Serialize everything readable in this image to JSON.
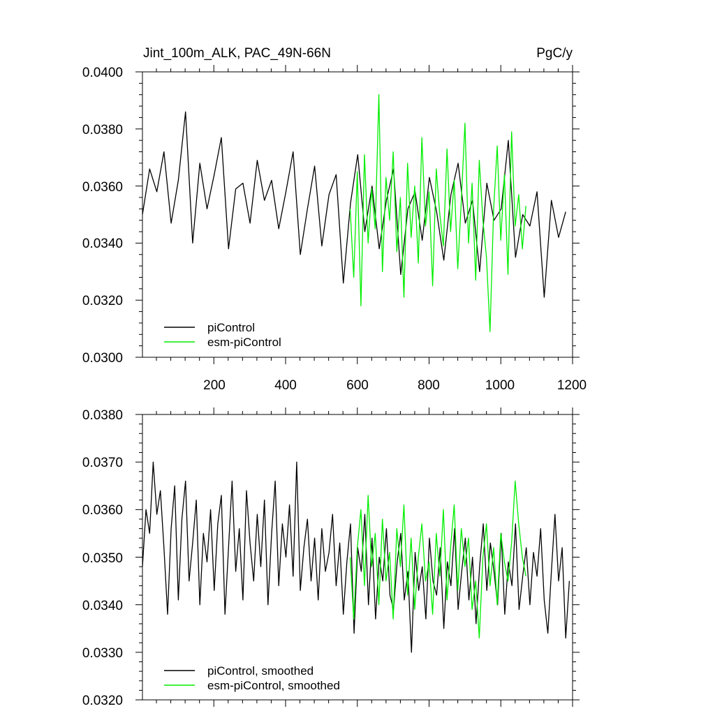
{
  "chart_data": [
    {
      "type": "line",
      "title": "Jint_100m_ALK, PAC_49N-66N",
      "units": "PgC/y",
      "xlabel": "",
      "ylabel": "",
      "xlim": [
        1,
        1200
      ],
      "ylim": [
        0.03,
        0.04
      ],
      "x_ticks": [
        200,
        400,
        600,
        800,
        1000,
        1200
      ],
      "x_tick_labels": [
        "200",
        "400",
        "600",
        "800",
        "1000",
        "1200"
      ],
      "y_ticks": [
        0.03,
        0.032,
        0.034,
        0.036,
        0.038,
        0.04
      ],
      "y_tick_labels": [
        "0.0300",
        "0.0320",
        "0.0340",
        "0.0360",
        "0.0380",
        "0.0400"
      ],
      "legend_position": "bottom-left",
      "grid": false,
      "series": [
        {
          "name": "piControl",
          "color": "#000000",
          "x_start": 1,
          "step": 20,
          "values": [
            0.035,
            0.0366,
            0.0358,
            0.0372,
            0.0347,
            0.0362,
            0.0386,
            0.034,
            0.0368,
            0.0352,
            0.0364,
            0.0377,
            0.0338,
            0.0359,
            0.0361,
            0.0347,
            0.0369,
            0.0355,
            0.0362,
            0.0345,
            0.0358,
            0.0372,
            0.0336,
            0.0352,
            0.0367,
            0.0339,
            0.0357,
            0.0364,
            0.0326,
            0.0354,
            0.0371,
            0.0344,
            0.036,
            0.0338,
            0.0355,
            0.0366,
            0.0329,
            0.0352,
            0.0358,
            0.0341,
            0.0363,
            0.0351,
            0.0334,
            0.0357,
            0.0368,
            0.0347,
            0.0355,
            0.033,
            0.0361,
            0.0348,
            0.0352,
            0.0376,
            0.0335,
            0.035,
            0.0346,
            0.0358,
            0.0321,
            0.0355,
            0.0342,
            0.0351
          ]
        },
        {
          "name": "esm-piControl",
          "color": "#00ee00",
          "x_start": 580,
          "step": 10,
          "values": [
            0.0352,
            0.0328,
            0.0365,
            0.0318,
            0.0371,
            0.034,
            0.0359,
            0.0345,
            0.0392,
            0.033,
            0.0363,
            0.0348,
            0.0372,
            0.0337,
            0.0356,
            0.0321,
            0.0368,
            0.0342,
            0.036,
            0.0333,
            0.0377,
            0.0346,
            0.0358,
            0.0325,
            0.0366,
            0.035,
            0.0339,
            0.0373,
            0.0344,
            0.0362,
            0.0331,
            0.0355,
            0.0382,
            0.034,
            0.0361,
            0.0327,
            0.0369,
            0.0348,
            0.0335,
            0.0309,
            0.0352,
            0.0374,
            0.0341,
            0.0364,
            0.0329,
            0.0379,
            0.0346,
            0.0357,
            0.0338,
            0.0353
          ]
        }
      ]
    },
    {
      "type": "line",
      "title": "",
      "xlabel": "",
      "ylabel": "",
      "xlim": [
        1,
        1200
      ],
      "ylim": [
        0.032,
        0.038
      ],
      "x_ticks": [
        200,
        400,
        600,
        800,
        1000,
        1200
      ],
      "y_ticks": [
        0.032,
        0.033,
        0.034,
        0.035,
        0.036,
        0.037,
        0.038
      ],
      "y_tick_labels": [
        "0.0320",
        "0.0330",
        "0.0340",
        "0.0350",
        "0.0360",
        "0.0370",
        "0.0380"
      ],
      "legend_position": "bottom-left",
      "grid": false,
      "series": [
        {
          "name": "piControl, smoothed",
          "color": "#000000",
          "x_start": 1,
          "step": 10,
          "values": [
            0.0348,
            0.036,
            0.0355,
            0.037,
            0.0359,
            0.0364,
            0.0352,
            0.0338,
            0.0356,
            0.0365,
            0.0341,
            0.0358,
            0.0366,
            0.0345,
            0.0353,
            0.0362,
            0.034,
            0.0355,
            0.0349,
            0.036,
            0.0343,
            0.0357,
            0.0363,
            0.0338,
            0.0352,
            0.0366,
            0.0347,
            0.0356,
            0.0341,
            0.0364,
            0.0353,
            0.0345,
            0.0359,
            0.0348,
            0.0362,
            0.034,
            0.0355,
            0.0366,
            0.0344,
            0.0357,
            0.035,
            0.0361,
            0.0346,
            0.037,
            0.0343,
            0.0352,
            0.0358,
            0.0345,
            0.0354,
            0.0341,
            0.0356,
            0.0347,
            0.0351,
            0.0359,
            0.0344,
            0.0353,
            0.0338,
            0.0349,
            0.0357,
            0.0334,
            0.0352,
            0.0347,
            0.0359,
            0.034,
            0.0354,
            0.0337,
            0.035,
            0.0345,
            0.0356,
            0.0342,
            0.0339,
            0.0349,
            0.0355,
            0.0341,
            0.0347,
            0.033,
            0.0351,
            0.0343,
            0.0348,
            0.0337,
            0.0354,
            0.0345,
            0.0342,
            0.0352,
            0.0335,
            0.0349,
            0.0344,
            0.0356,
            0.0339,
            0.0347,
            0.0354,
            0.0341,
            0.035,
            0.0336,
            0.0348,
            0.0357,
            0.0343,
            0.0353,
            0.0347,
            0.034,
            0.0355,
            0.0338,
            0.0349,
            0.0344,
            0.0357,
            0.0339,
            0.0346,
            0.0352,
            0.034,
            0.0351,
            0.0346,
            0.0356,
            0.0341,
            0.0334,
            0.0347,
            0.0359,
            0.0345,
            0.0352,
            0.0333,
            0.0345
          ]
        },
        {
          "name": "esm-piControl, smoothed",
          "color": "#00ee00",
          "x_start": 580,
          "step": 10,
          "values": [
            0.035,
            0.0337,
            0.0352,
            0.036,
            0.0344,
            0.0363,
            0.0348,
            0.0355,
            0.034,
            0.0358,
            0.0345,
            0.0351,
            0.0337,
            0.0356,
            0.0348,
            0.0361,
            0.0342,
            0.0354,
            0.0339,
            0.035,
            0.0357,
            0.0345,
            0.0349,
            0.0338,
            0.0355,
            0.0346,
            0.036,
            0.0341,
            0.0352,
            0.0361,
            0.0343,
            0.0356,
            0.0348,
            0.0354,
            0.0339,
            0.0345,
            0.0333,
            0.035,
            0.0357,
            0.0344,
            0.0352,
            0.034,
            0.0355,
            0.0349,
            0.0345,
            0.0353,
            0.0366,
            0.0357,
            0.035,
            0.0346
          ]
        }
      ]
    }
  ]
}
